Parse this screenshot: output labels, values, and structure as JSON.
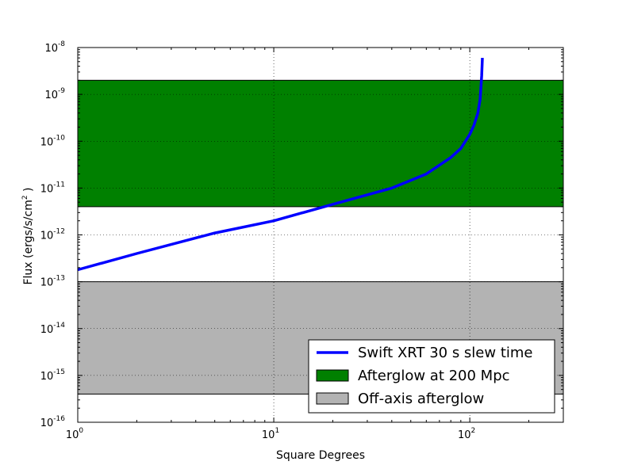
{
  "chart_data": {
    "type": "line",
    "xlabel": "Square Degrees",
    "ylabel": "Flux (ergs/s/cm",
    "ylabel_sup": "2",
    "ylabel_close": " )",
    "x_scale": "log",
    "y_scale": "log",
    "xlim": [
      1,
      300
    ],
    "ylim": [
      1e-16,
      1e-08
    ],
    "grid": true,
    "legend_position": "lower-right",
    "x_ticks": [
      {
        "base": "10",
        "exp": "0",
        "value": 1
      },
      {
        "base": "10",
        "exp": "1",
        "value": 10
      },
      {
        "base": "10",
        "exp": "2",
        "value": 100
      }
    ],
    "y_ticks": [
      {
        "base": "10",
        "exp": "-16",
        "value": 1e-16
      },
      {
        "base": "10",
        "exp": "-15",
        "value": 1e-15
      },
      {
        "base": "10",
        "exp": "-14",
        "value": 1e-14
      },
      {
        "base": "10",
        "exp": "-13",
        "value": 1e-13
      },
      {
        "base": "10",
        "exp": "-12",
        "value": 1e-12
      },
      {
        "base": "10",
        "exp": "-11",
        "value": 1e-11
      },
      {
        "base": "10",
        "exp": "-10",
        "value": 1e-10
      },
      {
        "base": "10",
        "exp": "-9",
        "value": 1e-09
      },
      {
        "base": "10",
        "exp": "-8",
        "value": 1e-08
      }
    ],
    "bands": [
      {
        "name": "Afterglow at 200 Mpc",
        "color": "#008000",
        "y_low": 4e-12,
        "y_high": 2e-09
      },
      {
        "name": "Off-axis afterglow",
        "color": "#b3b3b3",
        "y_low": 4e-16,
        "y_high": 1e-13
      }
    ],
    "series": [
      {
        "name": "Swift XRT 30 s slew time",
        "color": "#0000ff",
        "x": [
          1,
          2,
          5,
          10,
          20,
          40,
          60,
          80,
          90,
          100,
          105,
          110,
          113,
          115,
          116
        ],
        "y": [
          1.8e-13,
          4e-13,
          1.1e-12,
          2e-12,
          4.5e-12,
          1e-11,
          2e-11,
          4.5e-11,
          7e-11,
          1.4e-10,
          2.2e-10,
          4e-10,
          8e-10,
          2.5e-09,
          6e-09
        ]
      }
    ]
  }
}
